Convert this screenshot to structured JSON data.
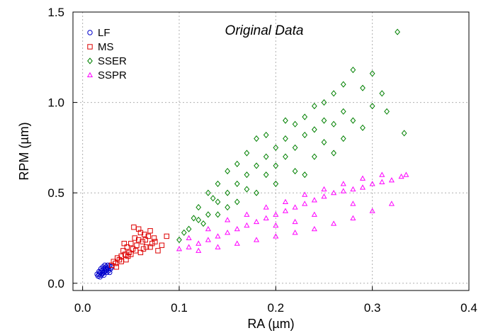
{
  "chart_data": {
    "type": "scatter",
    "title": "",
    "annotation": "Original Data",
    "xlabel": "RA (µm)",
    "ylabel": "RPM (µm)",
    "xlim": [
      -0.01,
      0.4
    ],
    "ylim": [
      -0.04,
      1.5
    ],
    "x_ticks": [
      0.0,
      0.1,
      0.2,
      0.3,
      0.4
    ],
    "x_tick_labels": [
      "0.0",
      "0.1",
      "0.2",
      "0.3",
      "0.4"
    ],
    "y_ticks": [
      0.0,
      0.5,
      1.0,
      1.5
    ],
    "y_tick_labels": [
      "0.0",
      "0.5",
      "1.0",
      "1.5"
    ],
    "grid": true,
    "legend_position": "top-left",
    "series": [
      {
        "name": "LF",
        "marker": "circle",
        "color": "#0000cc",
        "points": [
          [
            0.016,
            0.04
          ],
          [
            0.017,
            0.05
          ],
          [
            0.018,
            0.06
          ],
          [
            0.019,
            0.045
          ],
          [
            0.02,
            0.07
          ],
          [
            0.021,
            0.055
          ],
          [
            0.022,
            0.08
          ],
          [
            0.023,
            0.065
          ],
          [
            0.024,
            0.09
          ],
          [
            0.025,
            0.075
          ],
          [
            0.026,
            0.1
          ],
          [
            0.018,
            0.035
          ],
          [
            0.02,
            0.05
          ],
          [
            0.022,
            0.06
          ],
          [
            0.024,
            0.07
          ],
          [
            0.026,
            0.085
          ],
          [
            0.028,
            0.095
          ],
          [
            0.019,
            0.08
          ],
          [
            0.021,
            0.09
          ],
          [
            0.023,
            0.1
          ],
          [
            0.025,
            0.06
          ],
          [
            0.027,
            0.07
          ],
          [
            0.029,
            0.08
          ],
          [
            0.017,
            0.065
          ],
          [
            0.015,
            0.05
          ],
          [
            0.022,
            0.045
          ],
          [
            0.03,
            0.09
          ],
          [
            0.028,
            0.06
          ]
        ]
      },
      {
        "name": "MS",
        "marker": "square",
        "color": "#dd0000",
        "points": [
          [
            0.03,
            0.1
          ],
          [
            0.032,
            0.12
          ],
          [
            0.034,
            0.11
          ],
          [
            0.036,
            0.14
          ],
          [
            0.038,
            0.13
          ],
          [
            0.04,
            0.15
          ],
          [
            0.042,
            0.18
          ],
          [
            0.044,
            0.16
          ],
          [
            0.046,
            0.2
          ],
          [
            0.048,
            0.17
          ],
          [
            0.05,
            0.22
          ],
          [
            0.052,
            0.19
          ],
          [
            0.054,
            0.25
          ],
          [
            0.056,
            0.21
          ],
          [
            0.058,
            0.24
          ],
          [
            0.06,
            0.28
          ],
          [
            0.062,
            0.23
          ],
          [
            0.064,
            0.27
          ],
          [
            0.066,
            0.2
          ],
          [
            0.068,
            0.26
          ],
          [
            0.07,
            0.29
          ],
          [
            0.072,
            0.22
          ],
          [
            0.074,
            0.25
          ],
          [
            0.035,
            0.09
          ],
          [
            0.04,
            0.12
          ],
          [
            0.045,
            0.13
          ],
          [
            0.05,
            0.16
          ],
          [
            0.055,
            0.18
          ],
          [
            0.06,
            0.17
          ],
          [
            0.065,
            0.24
          ],
          [
            0.07,
            0.2
          ],
          [
            0.075,
            0.23
          ],
          [
            0.078,
            0.18
          ],
          [
            0.082,
            0.21
          ],
          [
            0.087,
            0.26
          ],
          [
            0.053,
            0.31
          ],
          [
            0.047,
            0.15
          ],
          [
            0.043,
            0.22
          ],
          [
            0.058,
            0.3
          ],
          [
            0.063,
            0.19
          ]
        ]
      },
      {
        "name": "SSER",
        "marker": "diamond",
        "color": "#008000",
        "points": [
          [
            0.1,
            0.24
          ],
          [
            0.11,
            0.3
          ],
          [
            0.12,
            0.35
          ],
          [
            0.12,
            0.42
          ],
          [
            0.13,
            0.38
          ],
          [
            0.13,
            0.5
          ],
          [
            0.14,
            0.45
          ],
          [
            0.14,
            0.55
          ],
          [
            0.15,
            0.5
          ],
          [
            0.15,
            0.62
          ],
          [
            0.16,
            0.55
          ],
          [
            0.16,
            0.66
          ],
          [
            0.17,
            0.6
          ],
          [
            0.17,
            0.72
          ],
          [
            0.18,
            0.65
          ],
          [
            0.18,
            0.8
          ],
          [
            0.19,
            0.7
          ],
          [
            0.19,
            0.6
          ],
          [
            0.2,
            0.75
          ],
          [
            0.2,
            0.65
          ],
          [
            0.21,
            0.8
          ],
          [
            0.21,
            0.7
          ],
          [
            0.22,
            0.88
          ],
          [
            0.22,
            0.75
          ],
          [
            0.23,
            0.92
          ],
          [
            0.23,
            0.82
          ],
          [
            0.24,
            0.98
          ],
          [
            0.24,
            0.85
          ],
          [
            0.25,
            1.0
          ],
          [
            0.25,
            0.9
          ],
          [
            0.26,
            1.05
          ],
          [
            0.26,
            0.88
          ],
          [
            0.27,
            1.1
          ],
          [
            0.27,
            0.95
          ],
          [
            0.28,
            1.18
          ],
          [
            0.28,
            0.9
          ],
          [
            0.29,
            1.08
          ],
          [
            0.3,
            1.16
          ],
          [
            0.3,
            0.98
          ],
          [
            0.31,
            1.05
          ],
          [
            0.315,
            0.95
          ],
          [
            0.326,
            1.39
          ],
          [
            0.333,
            0.83
          ],
          [
            0.2,
            0.55
          ],
          [
            0.18,
            0.5
          ],
          [
            0.22,
            0.62
          ],
          [
            0.24,
            0.7
          ],
          [
            0.26,
            0.72
          ],
          [
            0.16,
            0.45
          ],
          [
            0.14,
            0.38
          ],
          [
            0.15,
            0.42
          ],
          [
            0.17,
            0.52
          ],
          [
            0.19,
            0.82
          ],
          [
            0.21,
            0.9
          ],
          [
            0.23,
            0.6
          ],
          [
            0.25,
            0.78
          ],
          [
            0.27,
            0.8
          ],
          [
            0.29,
            0.86
          ],
          [
            0.125,
            0.33
          ],
          [
            0.135,
            0.47
          ],
          [
            0.105,
            0.28
          ],
          [
            0.115,
            0.36
          ]
        ]
      },
      {
        "name": "SSPR",
        "marker": "triangle",
        "color": "#ff00ff",
        "points": [
          [
            0.1,
            0.19
          ],
          [
            0.11,
            0.2
          ],
          [
            0.12,
            0.22
          ],
          [
            0.13,
            0.24
          ],
          [
            0.14,
            0.26
          ],
          [
            0.15,
            0.28
          ],
          [
            0.16,
            0.3
          ],
          [
            0.17,
            0.32
          ],
          [
            0.18,
            0.34
          ],
          [
            0.19,
            0.36
          ],
          [
            0.2,
            0.38
          ],
          [
            0.21,
            0.4
          ],
          [
            0.22,
            0.42
          ],
          [
            0.23,
            0.44
          ],
          [
            0.24,
            0.46
          ],
          [
            0.25,
            0.48
          ],
          [
            0.26,
            0.5
          ],
          [
            0.27,
            0.51
          ],
          [
            0.28,
            0.52
          ],
          [
            0.29,
            0.53
          ],
          [
            0.3,
            0.55
          ],
          [
            0.31,
            0.56
          ],
          [
            0.32,
            0.57
          ],
          [
            0.33,
            0.59
          ],
          [
            0.335,
            0.6
          ],
          [
            0.12,
            0.18
          ],
          [
            0.14,
            0.2
          ],
          [
            0.16,
            0.22
          ],
          [
            0.18,
            0.24
          ],
          [
            0.2,
            0.26
          ],
          [
            0.22,
            0.28
          ],
          [
            0.24,
            0.3
          ],
          [
            0.26,
            0.33
          ],
          [
            0.28,
            0.36
          ],
          [
            0.3,
            0.4
          ],
          [
            0.32,
            0.44
          ],
          [
            0.15,
            0.35
          ],
          [
            0.17,
            0.38
          ],
          [
            0.19,
            0.42
          ],
          [
            0.21,
            0.45
          ],
          [
            0.23,
            0.49
          ],
          [
            0.25,
            0.52
          ],
          [
            0.27,
            0.55
          ],
          [
            0.29,
            0.58
          ],
          [
            0.31,
            0.6
          ],
          [
            0.13,
            0.3
          ],
          [
            0.11,
            0.25
          ],
          [
            0.2,
            0.32
          ],
          [
            0.24,
            0.38
          ],
          [
            0.28,
            0.44
          ],
          [
            0.22,
            0.34
          ]
        ]
      }
    ]
  }
}
